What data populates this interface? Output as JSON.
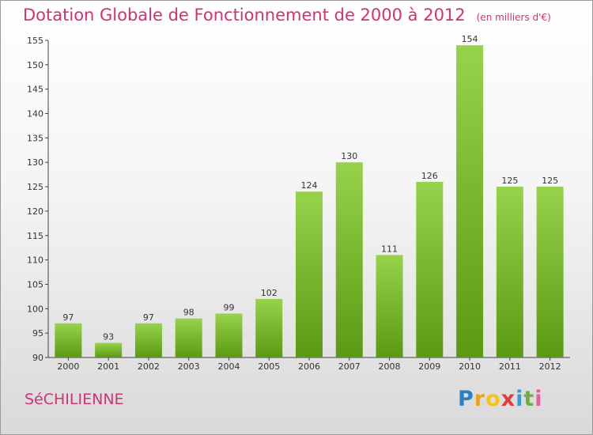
{
  "title": "Dotation Globale de Fonctionnement de 2000 à 2012",
  "unit_note": "(en milliers d'€)",
  "commune": "SéCHILIENNE",
  "logo": {
    "letters": [
      "P",
      "r",
      "o",
      "x",
      "i",
      "t",
      "i"
    ],
    "colors": [
      "#2d7fc1",
      "#e8a31b",
      "#f0c419",
      "#e23b3b",
      "#3a9ad9",
      "#6ab23d",
      "#e85d9a"
    ]
  },
  "colors": {
    "bar_top": "#97d24b",
    "bar_bottom": "#5a9a12",
    "title": "#cf3371",
    "axis": "#444444"
  },
  "chart_data": {
    "type": "bar",
    "title": "Dotation Globale de Fonctionnement de 2000 à 2012",
    "categories": [
      "2000",
      "2001",
      "2002",
      "2003",
      "2004",
      "2005",
      "2006",
      "2007",
      "2008",
      "2009",
      "2010",
      "2011",
      "2012"
    ],
    "values": [
      97,
      93,
      97,
      98,
      99,
      102,
      124,
      130,
      111,
      126,
      154,
      125,
      125
    ],
    "ylim": [
      90,
      155
    ],
    "yticks": [
      90,
      95,
      100,
      105,
      110,
      115,
      120,
      125,
      130,
      135,
      140,
      145,
      150,
      155
    ],
    "grid": false
  }
}
